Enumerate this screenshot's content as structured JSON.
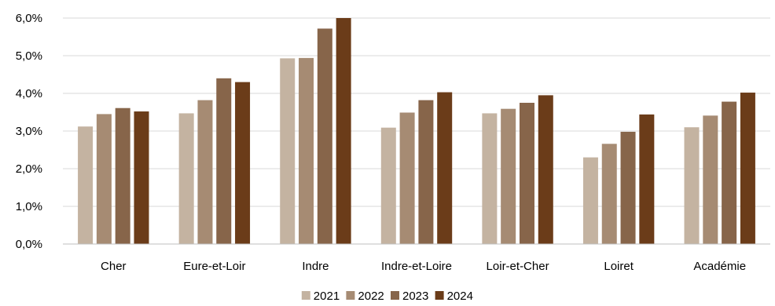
{
  "chart_data": {
    "type": "bar",
    "title": "",
    "xlabel": "",
    "ylabel": "",
    "categories": [
      "Cher",
      "Eure-et-Loir",
      "Indre",
      "Indre-et-Loire",
      "Loir-et-Cher",
      "Loiret",
      "Académie"
    ],
    "series": [
      {
        "name": "2021",
        "color": "#c4b3a1",
        "values": [
          3.12,
          3.47,
          4.93,
          3.09,
          3.47,
          2.3,
          3.1
        ]
      },
      {
        "name": "2022",
        "color": "#a68b73",
        "values": [
          3.45,
          3.82,
          4.94,
          3.49,
          3.59,
          2.66,
          3.41
        ]
      },
      {
        "name": "2023",
        "color": "#87654a",
        "values": [
          3.61,
          4.4,
          5.72,
          3.82,
          3.75,
          2.98,
          3.78
        ]
      },
      {
        "name": "2024",
        "color": "#6b3c19",
        "values": [
          3.52,
          4.3,
          6.0,
          4.03,
          3.95,
          3.44,
          4.02
        ]
      }
    ],
    "ylim": [
      0,
      6
    ],
    "yticks": [
      "0,0%",
      "1,0%",
      "2,0%",
      "3,0%",
      "4,0%",
      "5,0%",
      "6,0%"
    ],
    "grid": true,
    "legend_position": "bottom"
  }
}
